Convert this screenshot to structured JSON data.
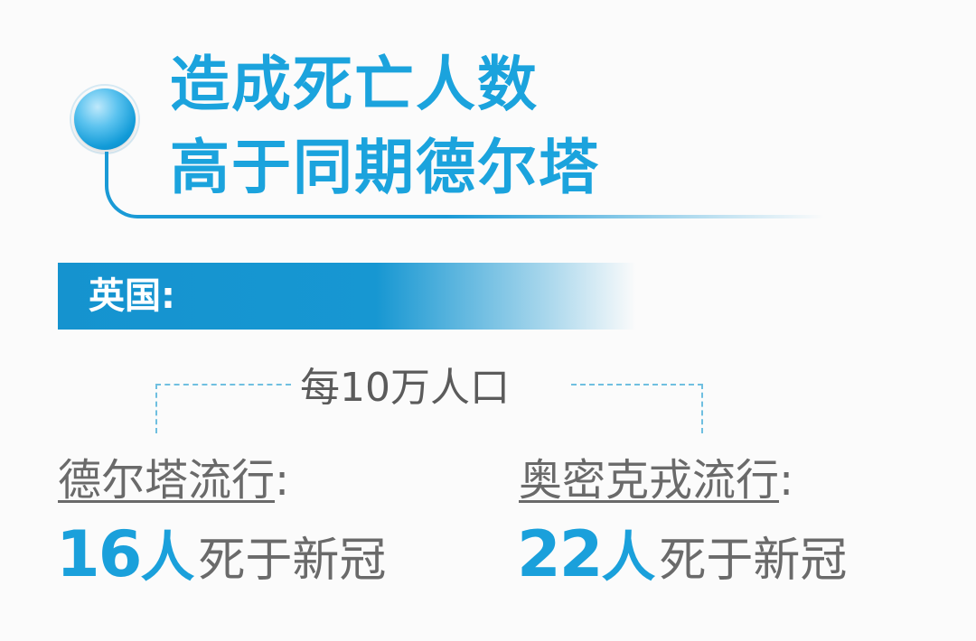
{
  "title": {
    "line1": "造成死亡人数",
    "line2": "高于同期德尔塔"
  },
  "region_label": "英国:",
  "per_population": "每10万人口",
  "variants": [
    {
      "name": "德尔塔流行",
      "colon": ":",
      "count": "16",
      "unit": "人",
      "description": "死于新冠"
    },
    {
      "name": "奥密克戎流行",
      "colon": ":",
      "count": "22",
      "unit": "人",
      "description": "死于新冠"
    }
  ],
  "colors": {
    "accent": "#1ba3dd",
    "banner": "#1593cf",
    "text_gray": "#6a6a6a",
    "background": "#fbfbfb"
  }
}
